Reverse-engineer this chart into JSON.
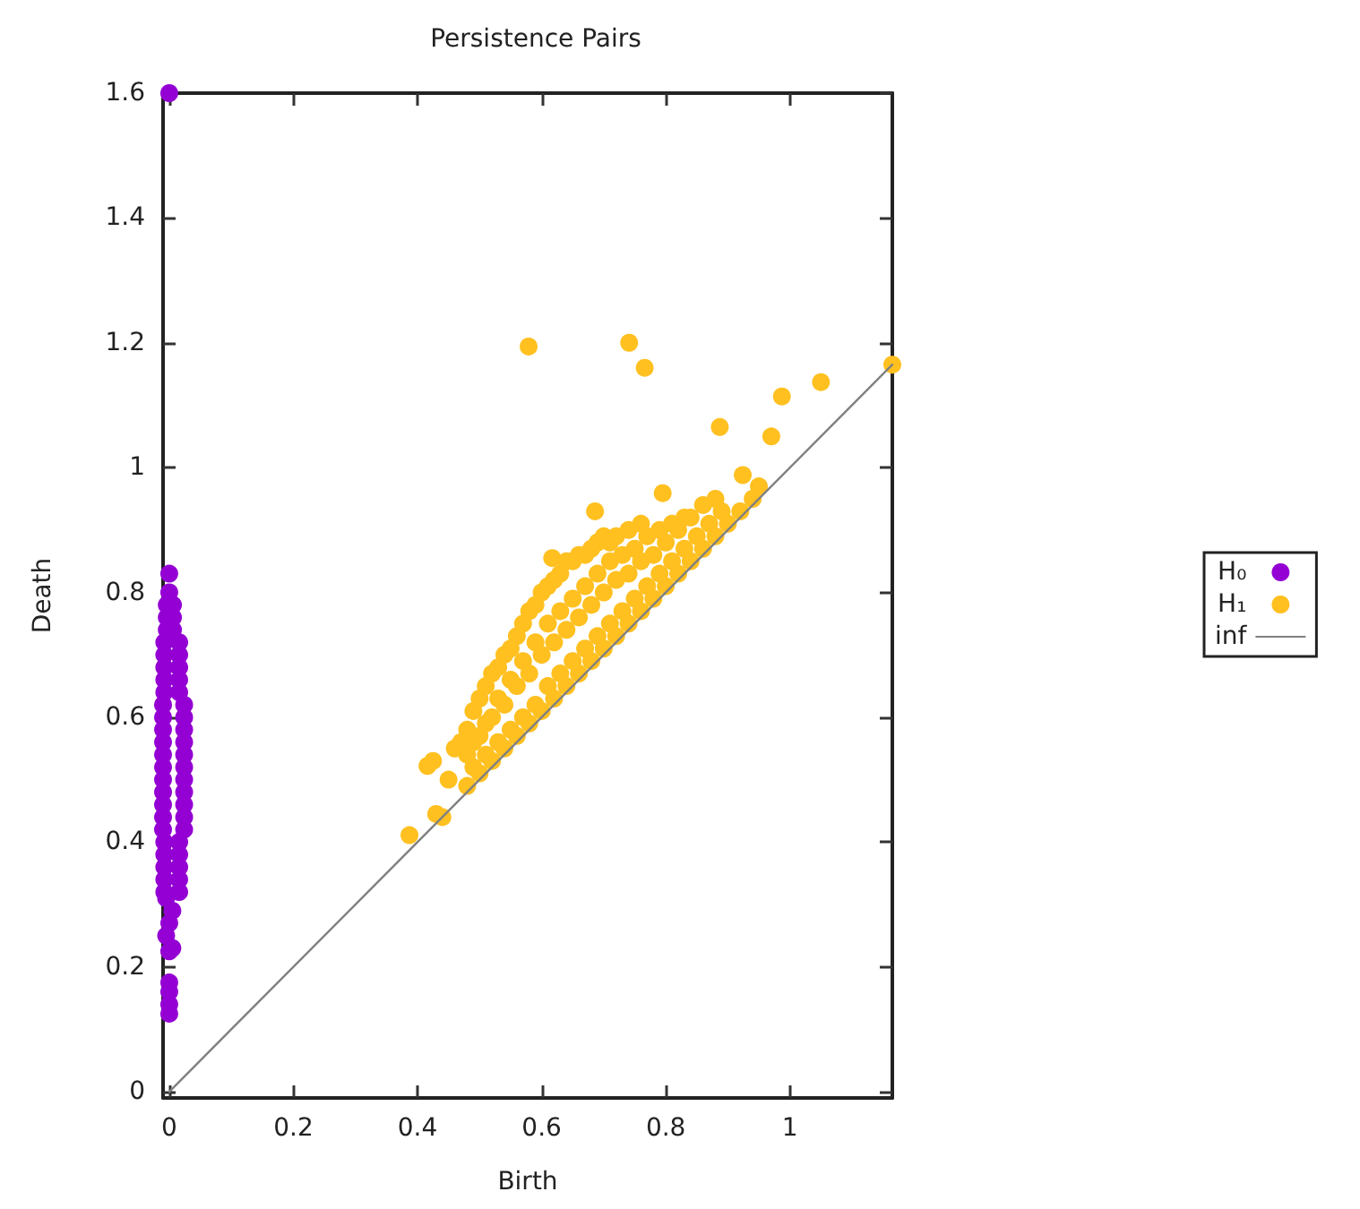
{
  "chart_data": {
    "type": "scatter",
    "title": "Persistence Pairs",
    "xlabel": "Birth",
    "ylabel": "Death",
    "xlim": [
      -0.01,
      1.165
    ],
    "ylim": [
      -0.01,
      1.6
    ],
    "xticks": [
      0,
      0.2,
      0.4,
      0.6,
      0.8,
      1
    ],
    "yticks": [
      0,
      0.2,
      0.4,
      0.6,
      0.8,
      1,
      1.2,
      1.4,
      1.6
    ],
    "grid": false,
    "legend": "right",
    "marker": "circle",
    "series": [
      {
        "name": "H₀",
        "color": "#9400d3",
        "x": [
          0,
          0,
          0,
          0,
          0,
          0.005,
          -0.005,
          0,
          0.005,
          -0.005,
          -0.008,
          0.016,
          -0.008,
          0.016,
          -0.008,
          0.016,
          -0.008,
          0.016,
          -0.008,
          0.016,
          -0.01,
          0.024,
          -0.01,
          0.024,
          -0.01,
          0.024,
          -0.01,
          0.024,
          -0.01,
          0.024,
          -0.01,
          0.024,
          -0.01,
          0.024,
          -0.01,
          0.024,
          -0.01,
          0.024,
          -0.01,
          0.024,
          -0.01,
          0.024,
          -0.008,
          0.016,
          -0.008,
          0.016,
          -0.008,
          0.016,
          -0.008,
          0.016,
          -0.008,
          0.016,
          -0.004,
          0.006,
          -0.004,
          0.006,
          -0.004,
          0.006,
          0,
          0,
          0
        ],
        "values": [
          0.125,
          0.14,
          0.16,
          0.175,
          0.225,
          0.23,
          0.25,
          0.27,
          0.29,
          0.31,
          0.32,
          0.32,
          0.34,
          0.34,
          0.36,
          0.36,
          0.38,
          0.38,
          0.4,
          0.4,
          0.42,
          0.42,
          0.44,
          0.44,
          0.46,
          0.46,
          0.48,
          0.48,
          0.5,
          0.5,
          0.52,
          0.52,
          0.54,
          0.54,
          0.56,
          0.56,
          0.58,
          0.58,
          0.6,
          0.6,
          0.62,
          0.62,
          0.64,
          0.64,
          0.66,
          0.66,
          0.68,
          0.68,
          0.7,
          0.7,
          0.72,
          0.72,
          0.74,
          0.74,
          0.76,
          0.76,
          0.78,
          0.78,
          0.8,
          0.83,
          1.6
        ]
      },
      {
        "name": "H₁",
        "color": "#ffc020",
        "x": [
          0.49,
          0.49,
          0.49,
          0.51,
          0.51,
          0.51,
          0.53,
          0.53,
          0.53,
          0.55,
          0.55,
          0.55,
          0.57,
          0.57,
          0.57,
          0.59,
          0.59,
          0.59,
          0.61,
          0.61,
          0.61,
          0.63,
          0.63,
          0.63,
          0.65,
          0.65,
          0.65,
          0.67,
          0.67,
          0.67,
          0.69,
          0.69,
          0.69,
          0.71,
          0.71,
          0.71,
          0.73,
          0.73,
          0.75,
          0.75,
          0.77,
          0.77,
          0.79,
          0.79,
          0.81,
          0.81,
          0.83,
          0.83,
          0.85,
          0.87,
          0.89,
          0.48,
          0.48,
          0.48,
          0.5,
          0.5,
          0.5,
          0.52,
          0.52,
          0.52,
          0.54,
          0.54,
          0.54,
          0.56,
          0.56,
          0.56,
          0.58,
          0.58,
          0.58,
          0.6,
          0.6,
          0.6,
          0.62,
          0.62,
          0.62,
          0.64,
          0.64,
          0.64,
          0.66,
          0.66,
          0.66,
          0.68,
          0.68,
          0.68,
          0.7,
          0.7,
          0.7,
          0.72,
          0.72,
          0.72,
          0.74,
          0.74,
          0.74,
          0.76,
          0.76,
          0.76,
          0.78,
          0.78,
          0.8,
          0.8,
          0.82,
          0.82,
          0.84,
          0.84,
          0.86,
          0.86,
          0.88,
          0.88,
          0.9,
          0.92,
          0.387,
          0.416,
          0.43,
          0.44,
          0.425,
          0.45,
          0.46,
          0.47,
          0.579,
          0.741,
          0.766,
          0.686,
          0.795,
          0.617,
          0.887,
          0.924,
          0.97,
          0.987,
          1.05,
          0.95,
          0.94,
          1.165
        ],
        "values": [
          0.52,
          0.56,
          0.61,
          0.54,
          0.59,
          0.65,
          0.56,
          0.63,
          0.68,
          0.58,
          0.66,
          0.71,
          0.6,
          0.69,
          0.75,
          0.62,
          0.72,
          0.78,
          0.65,
          0.75,
          0.81,
          0.67,
          0.77,
          0.83,
          0.69,
          0.79,
          0.85,
          0.71,
          0.81,
          0.86,
          0.73,
          0.83,
          0.88,
          0.75,
          0.85,
          0.88,
          0.77,
          0.86,
          0.79,
          0.87,
          0.81,
          0.89,
          0.83,
          0.9,
          0.85,
          0.91,
          0.87,
          0.92,
          0.89,
          0.91,
          0.93,
          0.49,
          0.54,
          0.58,
          0.51,
          0.57,
          0.63,
          0.53,
          0.6,
          0.67,
          0.55,
          0.62,
          0.7,
          0.57,
          0.65,
          0.73,
          0.59,
          0.67,
          0.77,
          0.61,
          0.7,
          0.8,
          0.63,
          0.72,
          0.82,
          0.65,
          0.74,
          0.85,
          0.67,
          0.76,
          0.86,
          0.69,
          0.78,
          0.87,
          0.71,
          0.8,
          0.89,
          0.73,
          0.82,
          0.89,
          0.75,
          0.83,
          0.9,
          0.77,
          0.85,
          0.91,
          0.79,
          0.86,
          0.81,
          0.88,
          0.83,
          0.9,
          0.85,
          0.92,
          0.87,
          0.94,
          0.89,
          0.95,
          0.91,
          0.93,
          0.411,
          0.522,
          0.445,
          0.44,
          0.53,
          0.5,
          0.55,
          0.56,
          1.194,
          1.2,
          1.16,
          0.93,
          0.959,
          0.855,
          1.065,
          0.988,
          1.05,
          1.114,
          1.137,
          0.97,
          0.95,
          1.165
        ]
      },
      {
        "name": "inf",
        "color": "#808080",
        "type": "line",
        "marker": "none",
        "line_style": "solid",
        "x": [
          0,
          1.165
        ],
        "values": [
          0,
          1.165
        ]
      }
    ]
  }
}
